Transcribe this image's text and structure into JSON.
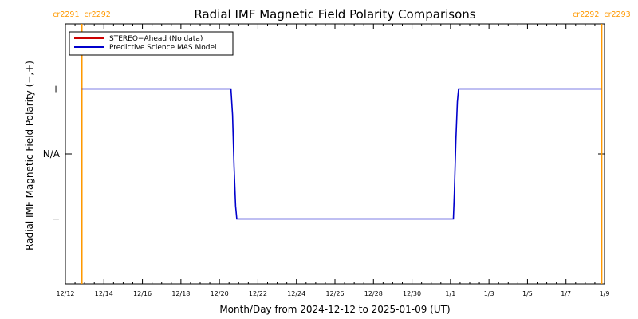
{
  "chart_data": {
    "type": "line",
    "title": "Radial IMF Magnetic Field Polarity Comparisons",
    "xlabel": "Month/Day from 2024-12-12 to 2025-01-09 (UT)",
    "ylabel": "Radial IMF Magnetic Field Polarity (−,+)",
    "x_range_days": [
      0,
      28
    ],
    "y_ticks": [
      {
        "value": 1,
        "label": "+"
      },
      {
        "value": 0,
        "label": "N/A"
      },
      {
        "value": -1,
        "label": "−"
      }
    ],
    "ylim": [
      -2,
      2
    ],
    "x_ticks": [
      {
        "day": 0,
        "label": "12/12"
      },
      {
        "day": 2,
        "label": "12/14"
      },
      {
        "day": 4,
        "label": "12/16"
      },
      {
        "day": 6,
        "label": "12/18"
      },
      {
        "day": 8,
        "label": "12/20"
      },
      {
        "day": 10,
        "label": "12/22"
      },
      {
        "day": 12,
        "label": "12/24"
      },
      {
        "day": 14,
        "label": "12/26"
      },
      {
        "day": 16,
        "label": "12/28"
      },
      {
        "day": 18,
        "label": "12/30"
      },
      {
        "day": 20,
        "label": "1/1"
      },
      {
        "day": 22,
        "label": "1/3"
      },
      {
        "day": 24,
        "label": "1/5"
      },
      {
        "day": 26,
        "label": "1/7"
      },
      {
        "day": 28,
        "label": "1/9"
      }
    ],
    "series": [
      {
        "name": "STEREO−Ahead (No data)",
        "color": "#cc0000",
        "points": []
      },
      {
        "name": "Predictive Science MAS Model",
        "color": "#0000cc",
        "points": [
          [
            0.85,
            1
          ],
          [
            8.6,
            1
          ],
          [
            8.68,
            0.6
          ],
          [
            8.76,
            -0.2
          ],
          [
            8.84,
            -0.8
          ],
          [
            8.9,
            -1
          ],
          [
            20.15,
            -1
          ],
          [
            20.2,
            -0.6
          ],
          [
            20.28,
            0.2
          ],
          [
            20.36,
            0.8
          ],
          [
            20.42,
            1
          ],
          [
            27.85,
            1
          ]
        ]
      }
    ],
    "carrington_markers": [
      {
        "day": 0.85,
        "left_label": "cr2291",
        "right_label": "cr2292",
        "side": "left",
        "color": "#ff9900"
      },
      {
        "day": 27.85,
        "left_label": "cr2292",
        "right_label": "cr2293",
        "side": "right",
        "color": "#ff9900"
      }
    ],
    "legend": {
      "position": "top-left"
    },
    "grid": false
  }
}
